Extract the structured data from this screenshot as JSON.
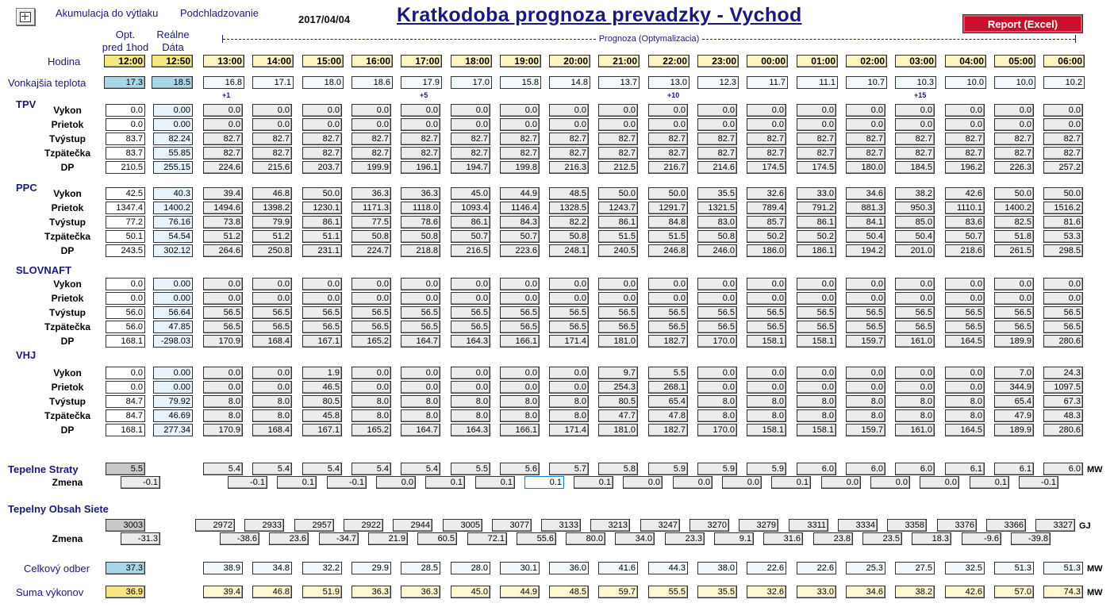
{
  "header": {
    "icon": "fit-to-window-icon",
    "links": [
      "Akumulacja do výtlaku",
      "Podchladzovanie"
    ],
    "date": "2017/04/04",
    "title": "Kratkodoba prognoza prevadzky - Vychod",
    "report_button": "Report (Excel)",
    "colors": {
      "title": "#1a1a7a",
      "report_button": "#c8102e"
    }
  },
  "columns": {
    "opt_header": [
      "Opt.",
      "pred 1hod"
    ],
    "real_header": [
      "Reálne",
      "Dáta"
    ],
    "forecast_label": "Prognoza (Optymalizacia)"
  },
  "hours": {
    "label": "Hodina",
    "opt": "12:00",
    "real": "12:50",
    "forecast": [
      "13:00",
      "14:00",
      "15:00",
      "16:00",
      "17:00",
      "18:00",
      "19:00",
      "20:00",
      "21:00",
      "22:00",
      "23:00",
      "00:00",
      "01:00",
      "02:00",
      "03:00",
      "04:00",
      "05:00",
      "06:00"
    ]
  },
  "temperature": {
    "label": "Vonkajšia teplota",
    "opt": "17.3",
    "real": "18.5",
    "forecast": [
      "16.8",
      "17.1",
      "18.0",
      "18.6",
      "17.9",
      "17.0",
      "15.8",
      "14.8",
      "13.7",
      "13.0",
      "12.3",
      "11.7",
      "11.1",
      "10.7",
      "10.3",
      "10.0",
      "10.0",
      "10.2"
    ]
  },
  "markers": [
    {
      "label": "+1",
      "col": 0
    },
    {
      "label": "+5",
      "col": 4
    },
    {
      "label": "+10",
      "col": 9
    },
    {
      "label": "+15",
      "col": 14
    }
  ],
  "sections": [
    {
      "name": "TPV",
      "rows": [
        {
          "label": "Vykon",
          "opt": "0.0",
          "real": "0.00",
          "forecast": [
            "0.0",
            "0.0",
            "0.0",
            "0.0",
            "0.0",
            "0.0",
            "0.0",
            "0.0",
            "0.0",
            "0.0",
            "0.0",
            "0.0",
            "0.0",
            "0.0",
            "0.0",
            "0.0",
            "0.0",
            "0.0"
          ]
        },
        {
          "label": "Prietok",
          "opt": "0.0",
          "real": "0.00",
          "forecast": [
            "0.0",
            "0.0",
            "0.0",
            "0.0",
            "0.0",
            "0.0",
            "0.0",
            "0.0",
            "0.0",
            "0.0",
            "0.0",
            "0.0",
            "0.0",
            "0.0",
            "0.0",
            "0.0",
            "0.0",
            "0.0"
          ]
        },
        {
          "label": "Tvýstup",
          "opt": "83.7",
          "real": "82.24",
          "forecast": [
            "82.7",
            "82.7",
            "82.7",
            "82.7",
            "82.7",
            "82.7",
            "82.7",
            "82.7",
            "82.7",
            "82.7",
            "82.7",
            "82.7",
            "82.7",
            "82.7",
            "82.7",
            "82.7",
            "82.7",
            "82.7"
          ]
        },
        {
          "label": "Tzpätečka",
          "opt": "83.7",
          "real": "55.85",
          "forecast": [
            "82.7",
            "82.7",
            "82.7",
            "82.7",
            "82.7",
            "82.7",
            "82.7",
            "82.7",
            "82.7",
            "82.7",
            "82.7",
            "82.7",
            "82.7",
            "82.7",
            "82.7",
            "82.7",
            "82.7",
            "82.7"
          ]
        },
        {
          "label": "DP",
          "opt": "210.5",
          "real": "255.15",
          "forecast": [
            "224.6",
            "215.6",
            "203.7",
            "199.9",
            "196.1",
            "194.7",
            "199.8",
            "216.3",
            "212.5",
            "216.7",
            "214.6",
            "174.5",
            "174.5",
            "180.0",
            "184.5",
            "196.2",
            "226.3",
            "257.2"
          ]
        }
      ]
    },
    {
      "name": "PPC",
      "rows": [
        {
          "label": "Vykon",
          "opt": "42.5",
          "real": "40.3",
          "forecast": [
            "39.4",
            "46.8",
            "50.0",
            "36.3",
            "36.3",
            "45.0",
            "44.9",
            "48.5",
            "50.0",
            "50.0",
            "35.5",
            "32.6",
            "33.0",
            "34.6",
            "38.2",
            "42.6",
            "50.0",
            "50.0"
          ]
        },
        {
          "label": "Prietok",
          "opt": "1347.4",
          "real": "1400.2",
          "forecast": [
            "1494.6",
            "1398.2",
            "1230.1",
            "1171.3",
            "1118.0",
            "1093.4",
            "1146.4",
            "1328.5",
            "1243.7",
            "1291.7",
            "1321.5",
            "789.4",
            "791.2",
            "881.3",
            "950.3",
            "1110.1",
            "1400.2",
            "1516.2"
          ]
        },
        {
          "label": "Tvýstup",
          "opt": "77.2",
          "real": "76.16",
          "forecast": [
            "73.8",
            "79.9",
            "86.1",
            "77.5",
            "78.6",
            "86.1",
            "84.3",
            "82.2",
            "86.1",
            "84.8",
            "83.0",
            "85.7",
            "86.1",
            "84.1",
            "85.0",
            "83.6",
            "82.5",
            "81.6"
          ]
        },
        {
          "label": "Tzpätečka",
          "opt": "50.1",
          "real": "54.54",
          "forecast": [
            "51.2",
            "51.2",
            "51.1",
            "50.8",
            "50.8",
            "50.7",
            "50.7",
            "50.8",
            "51.5",
            "51.5",
            "50.8",
            "50.2",
            "50.2",
            "50.4",
            "50.4",
            "50.7",
            "51.8",
            "53.3"
          ]
        },
        {
          "label": "DP",
          "opt": "243.5",
          "real": "302.12",
          "forecast": [
            "264.6",
            "250.8",
            "231.1",
            "224.7",
            "218.8",
            "216.5",
            "223.6",
            "248.1",
            "240.5",
            "246.8",
            "246.0",
            "186.0",
            "186.1",
            "194.2",
            "201.0",
            "218.6",
            "261.5",
            "298.5"
          ]
        }
      ]
    },
    {
      "name": "SLOVNAFT",
      "rows": [
        {
          "label": "Vykon",
          "opt": "0.0",
          "real": "0.00",
          "forecast": [
            "0.0",
            "0.0",
            "0.0",
            "0.0",
            "0.0",
            "0.0",
            "0.0",
            "0.0",
            "0.0",
            "0.0",
            "0.0",
            "0.0",
            "0.0",
            "0.0",
            "0.0",
            "0.0",
            "0.0",
            "0.0"
          ]
        },
        {
          "label": "Prietok",
          "opt": "0.0",
          "real": "0.00",
          "forecast": [
            "0.0",
            "0.0",
            "0.0",
            "0.0",
            "0.0",
            "0.0",
            "0.0",
            "0.0",
            "0.0",
            "0.0",
            "0.0",
            "0.0",
            "0.0",
            "0.0",
            "0.0",
            "0.0",
            "0.0",
            "0.0"
          ]
        },
        {
          "label": "Tvýstup",
          "opt": "56.0",
          "real": "56.64",
          "forecast": [
            "56.5",
            "56.5",
            "56.5",
            "56.5",
            "56.5",
            "56.5",
            "56.5",
            "56.5",
            "56.5",
            "56.5",
            "56.5",
            "56.5",
            "56.5",
            "56.5",
            "56.5",
            "56.5",
            "56.5",
            "56.5"
          ]
        },
        {
          "label": "Tzpätečka",
          "opt": "56.0",
          "real": "47.85",
          "forecast": [
            "56.5",
            "56.5",
            "56.5",
            "56.5",
            "56.5",
            "56.5",
            "56.5",
            "56.5",
            "56.5",
            "56.5",
            "56.5",
            "56.5",
            "56.5",
            "56.5",
            "56.5",
            "56.5",
            "56.5",
            "56.5"
          ]
        },
        {
          "label": "DP",
          "opt": "168.1",
          "real": "-298.03",
          "forecast": [
            "170.9",
            "168.4",
            "167.1",
            "165.2",
            "164.7",
            "164.3",
            "166.1",
            "171.4",
            "181.0",
            "182.7",
            "170.0",
            "158.1",
            "158.1",
            "159.7",
            "161.0",
            "164.5",
            "189.9",
            "280.6"
          ]
        }
      ]
    },
    {
      "name": "VHJ",
      "rows": [
        {
          "label": "Vykon",
          "opt": "0.0",
          "real": "0.00",
          "forecast": [
            "0.0",
            "0.0",
            "1.9",
            "0.0",
            "0.0",
            "0.0",
            "0.0",
            "0.0",
            "9.7",
            "5.5",
            "0.0",
            "0.0",
            "0.0",
            "0.0",
            "0.0",
            "0.0",
            "7.0",
            "24.3"
          ]
        },
        {
          "label": "Prietok",
          "opt": "0.0",
          "real": "0.00",
          "forecast": [
            "0.0",
            "0.0",
            "46.5",
            "0.0",
            "0.0",
            "0.0",
            "0.0",
            "0.0",
            "254.3",
            "268.1",
            "0.0",
            "0.0",
            "0.0",
            "0.0",
            "0.0",
            "0.0",
            "344.9",
            "1097.5"
          ]
        },
        {
          "label": "Tvýstup",
          "opt": "84.7",
          "real": "79.92",
          "forecast": [
            "8.0",
            "8.0",
            "80.5",
            "8.0",
            "8.0",
            "8.0",
            "8.0",
            "8.0",
            "80.5",
            "65.4",
            "8.0",
            "8.0",
            "8.0",
            "8.0",
            "8.0",
            "8.0",
            "65.4",
            "67.3"
          ]
        },
        {
          "label": "Tzpätečka",
          "opt": "84.7",
          "real": "46.69",
          "forecast": [
            "8.0",
            "8.0",
            "45.8",
            "8.0",
            "8.0",
            "8.0",
            "8.0",
            "8.0",
            "47.7",
            "47.8",
            "8.0",
            "8.0",
            "8.0",
            "8.0",
            "8.0",
            "8.0",
            "47.9",
            "48.3"
          ]
        },
        {
          "label": "DP",
          "opt": "168.1",
          "real": "277.34",
          "forecast": [
            "170.9",
            "168.4",
            "167.1",
            "165.2",
            "164.7",
            "164.3",
            "166.1",
            "171.4",
            "181.0",
            "182.7",
            "170.0",
            "158.1",
            "158.1",
            "159.7",
            "161.0",
            "164.5",
            "189.9",
            "280.6"
          ]
        }
      ]
    }
  ],
  "heat_loss": {
    "label": "Tepelne Straty",
    "opt": "5.5",
    "forecast": [
      "5.4",
      "5.4",
      "5.4",
      "5.4",
      "5.4",
      "5.5",
      "5.6",
      "5.7",
      "5.8",
      "5.9",
      "5.9",
      "5.9",
      "6.0",
      "6.0",
      "6.0",
      "6.1",
      "6.1",
      "6.0"
    ],
    "unit": "MW",
    "change_label": "Zmena",
    "change_opt": "-0.1",
    "change": [
      "-0.1",
      "0.1",
      "-0.1",
      "0.0",
      "0.1",
      "0.1",
      "0.1",
      "0.1",
      "0.0",
      "0.0",
      "0.0",
      "0.1",
      "0.0",
      "0.0",
      "0.0",
      "0.1",
      "-0.1"
    ],
    "selected_change_index": 6
  },
  "heat_content": {
    "label": "Tepelny Obsah Siete",
    "opt": "3003",
    "forecast": [
      "2972",
      "2933",
      "2957",
      "2922",
      "2944",
      "3005",
      "3077",
      "3133",
      "3213",
      "3247",
      "3270",
      "3279",
      "3311",
      "3334",
      "3358",
      "3376",
      "3366",
      "3327"
    ],
    "unit": "GJ",
    "change_label": "Zmena",
    "change_opt": "-31.3",
    "change": [
      "-38.6",
      "23.6",
      "-34.7",
      "21.9",
      "60.5",
      "72.1",
      "55.6",
      "80.0",
      "34.0",
      "23.3",
      "9.1",
      "31.6",
      "23.8",
      "23.5",
      "18.3",
      "-9.6",
      "-39.8"
    ]
  },
  "total_demand": {
    "label": "Celkový odber",
    "opt": "37.3",
    "forecast": [
      "38.9",
      "34.8",
      "32.2",
      "29.9",
      "28.5",
      "28.0",
      "30.1",
      "36.0",
      "41.6",
      "44.3",
      "38.0",
      "22.6",
      "22.6",
      "25.3",
      "27.5",
      "32.5",
      "51.3",
      "51.3"
    ],
    "unit": "MW"
  },
  "power_sum": {
    "label": "Suma výkonov",
    "opt": "36.9",
    "forecast": [
      "39.4",
      "46.8",
      "51.9",
      "36.3",
      "36.3",
      "45.0",
      "44.9",
      "48.5",
      "59.7",
      "55.5",
      "35.5",
      "32.6",
      "33.0",
      "34.6",
      "38.2",
      "42.6",
      "57.0",
      "74.3"
    ],
    "unit": "MW"
  }
}
